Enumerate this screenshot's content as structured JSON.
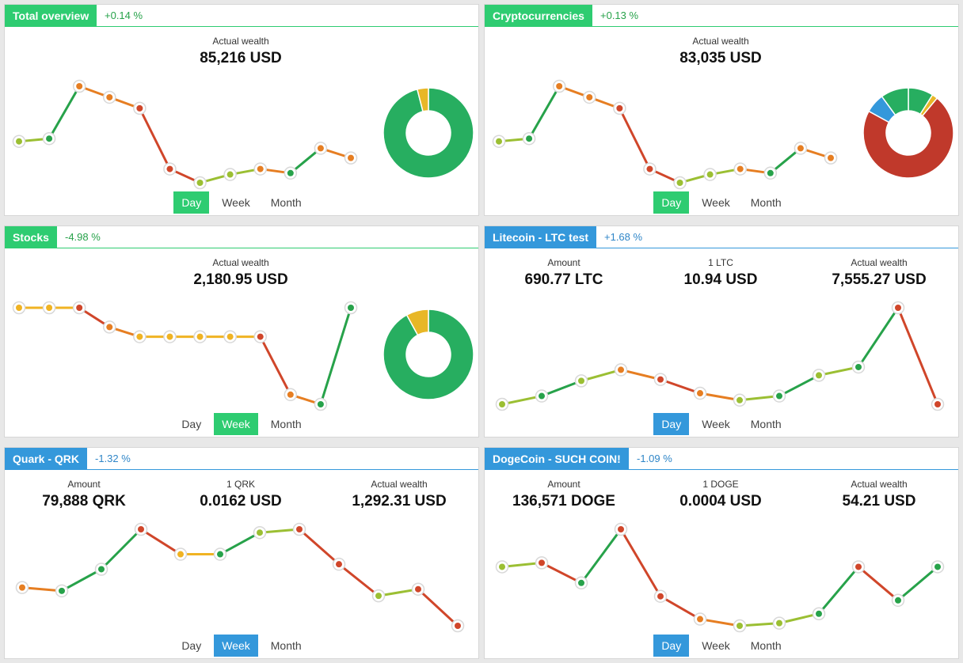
{
  "colors": {
    "green": "#2ecc71",
    "blue": "#3498db",
    "up": "#27a24a",
    "down": "#d0462a",
    "mid_up": "#9bbf33",
    "mid_down": "#e67e22",
    "flat": "#f0b323"
  },
  "panels": [
    {
      "title": "Total overview",
      "change": "+0.14 %",
      "theme": "green",
      "stats": [
        {
          "label": "Actual wealth",
          "value": "85,216 USD"
        }
      ],
      "tabs": [
        "Day",
        "Week",
        "Month"
      ],
      "active_tab": 0,
      "series": [
        60,
        62,
        100,
        92,
        84,
        40,
        30,
        36,
        40,
        37,
        55,
        48
      ],
      "donut": [
        {
          "value": 96,
          "color": "#27ae60"
        },
        {
          "value": 4,
          "color": "#e8b727"
        }
      ]
    },
    {
      "title": "Cryptocurrencies",
      "change": "+0.13 %",
      "theme": "green",
      "stats": [
        {
          "label": "Actual wealth",
          "value": "83,035 USD"
        }
      ],
      "tabs": [
        "Day",
        "Week",
        "Month"
      ],
      "active_tab": 0,
      "series": [
        60,
        62,
        100,
        92,
        84,
        40,
        30,
        36,
        40,
        37,
        55,
        48
      ],
      "donut": [
        {
          "value": 9,
          "color": "#27ae60"
        },
        {
          "value": 2,
          "color": "#e8b727"
        },
        {
          "value": 72,
          "color": "#c0392b"
        },
        {
          "value": 7,
          "color": "#3498db"
        },
        {
          "value": 10,
          "color": "#27ae60"
        }
      ]
    },
    {
      "title": "Stocks",
      "change": "-4.98 %",
      "theme": "green",
      "stats": [
        {
          "label": "Actual wealth",
          "value": "2,180.95 USD"
        }
      ],
      "tabs": [
        "Day",
        "Week",
        "Month"
      ],
      "active_tab": 1,
      "series": [
        100,
        100,
        100,
        90,
        85,
        85,
        85,
        85,
        85,
        55,
        50,
        100
      ],
      "donut": [
        {
          "value": 92,
          "color": "#27ae60"
        },
        {
          "value": 8,
          "color": "#e8b727"
        }
      ]
    },
    {
      "title": "Litecoin - LTC test",
      "change": "+1.68 %",
      "theme": "blue",
      "stats": [
        {
          "label": "Amount",
          "value": "690.77 LTC"
        },
        {
          "label": "1 LTC",
          "value": "10.94 USD"
        },
        {
          "label": "Actual wealth",
          "value": "7,555.27 USD"
        }
      ],
      "tabs": [
        "Day",
        "Week",
        "Month"
      ],
      "active_tab": 0,
      "series": [
        30,
        36,
        47,
        55,
        48,
        38,
        33,
        36,
        51,
        57,
        100,
        30
      ],
      "donut": []
    },
    {
      "title": "Quark - QRK",
      "change": "-1.32 %",
      "theme": "blue",
      "stats": [
        {
          "label": "Amount",
          "value": "79,888 QRK"
        },
        {
          "label": "1 QRK",
          "value": "0.0162 USD"
        },
        {
          "label": "Actual wealth",
          "value": "1,292.31 USD"
        }
      ],
      "tabs": [
        "Day",
        "Week",
        "Month"
      ],
      "active_tab": 1,
      "series": [
        55,
        53,
        66,
        90,
        75,
        75,
        88,
        90,
        69,
        50,
        54,
        32
      ],
      "donut": []
    },
    {
      "title": "DogeCoin - SUCH COIN!",
      "change": "-1.09 %",
      "theme": "blue",
      "stats": [
        {
          "label": "Amount",
          "value": "136,571 DOGE"
        },
        {
          "label": "1 DOGE",
          "value": "0.0004 USD"
        },
        {
          "label": "Actual wealth",
          "value": "54.21 USD"
        }
      ],
      "tabs": [
        "Day",
        "Week",
        "Month"
      ],
      "active_tab": 0,
      "series": [
        72,
        75,
        60,
        100,
        50,
        33,
        28,
        30,
        37,
        72,
        47,
        72
      ],
      "donut": []
    }
  ]
}
